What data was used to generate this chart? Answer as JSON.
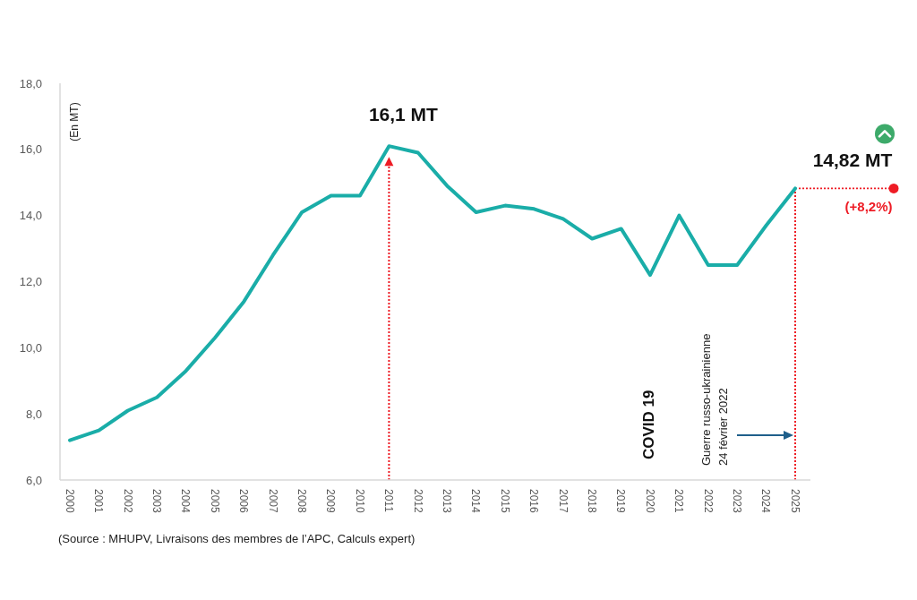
{
  "chart_data": {
    "type": "line",
    "ylabel": "(En MT)",
    "categories": [
      "2000",
      "2001",
      "2002",
      "2003",
      "2004",
      "2005",
      "2006",
      "2007",
      "2008",
      "2009",
      "2010",
      "2011",
      "2012",
      "2013",
      "2014",
      "2015",
      "2016",
      "2017",
      "2018",
      "2019",
      "2020",
      "2021",
      "2022",
      "2023",
      "2024",
      "2025"
    ],
    "values": [
      7.2,
      7.5,
      8.1,
      8.5,
      9.3,
      10.3,
      11.4,
      12.8,
      14.1,
      14.6,
      14.6,
      16.1,
      15.9,
      14.9,
      14.1,
      14.3,
      14.2,
      13.9,
      13.3,
      13.6,
      12.2,
      14.0,
      12.5,
      12.5,
      13.7,
      14.82
    ],
    "color": "#1aada8",
    "ylim": [
      6,
      18
    ],
    "yticks": [
      {
        "value": 6,
        "label": "6,0"
      },
      {
        "value": 8,
        "label": "8,0"
      },
      {
        "value": 10,
        "label": "10,0"
      },
      {
        "value": 12,
        "label": "12,0"
      },
      {
        "value": 14,
        "label": "14,0"
      },
      {
        "value": 16,
        "label": "16,0"
      },
      {
        "value": 18,
        "label": "18,0"
      }
    ],
    "ref_lines": [
      {
        "axis": "x",
        "value": "2011",
        "color": "#ee1c25",
        "line_style": "dotted"
      },
      {
        "axis": "x",
        "value": "2025",
        "color": "#ee1c25",
        "line_style": "dotted"
      }
    ],
    "annotations": [
      {
        "text": "16,1 MT",
        "x": "2011",
        "y": 16.1
      },
      {
        "text": "14,82 MT",
        "x": "2025",
        "y": 14.82
      },
      {
        "text": "(+8,2%)",
        "x": "2025",
        "y": 14.82
      },
      "COVID 19",
      "Guerre russo-ukrainienne\n24 février 2022",
      "(Source : MHUPV, Livraisons des membres de l’APC, Calculs expert)"
    ]
  }
}
